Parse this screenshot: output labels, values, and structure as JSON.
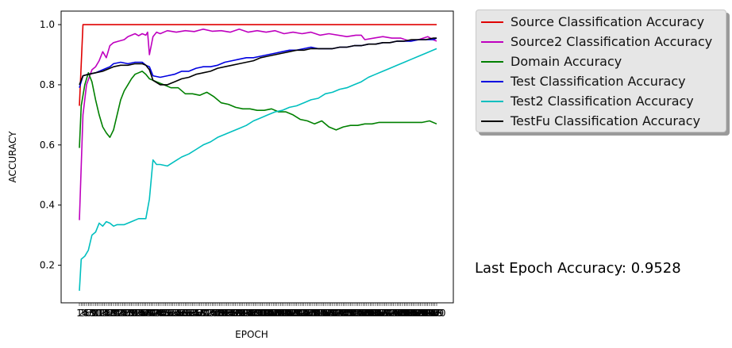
{
  "chart_data": {
    "type": "line",
    "xlabel": "EPOCH",
    "ylabel": "ACCURACY",
    "x_range": [
      1,
      200
    ],
    "ylim": [
      0.075,
      1.045
    ],
    "y_ticks": [
      "0.2",
      "0.4",
      "0.6",
      "0.8",
      "1.0"
    ],
    "y_tick_values": [
      0.2,
      0.4,
      0.6,
      0.8,
      1.0
    ],
    "grid": false,
    "legend_placement": "outside-right",
    "series": [
      {
        "name": "Source Classification Accuracy",
        "color": "#e00000",
        "points": [
          [
            1,
            0.73
          ],
          [
            3,
            1.0
          ],
          [
            10,
            1.0
          ],
          [
            30,
            1.0
          ],
          [
            60,
            1.0
          ],
          [
            100,
            1.0
          ],
          [
            140,
            1.0
          ],
          [
            170,
            1.0
          ],
          [
            200,
            1.0
          ]
        ]
      },
      {
        "name": "Source2 Classification Accuracy",
        "color": "#bf00bf",
        "points": [
          [
            1,
            0.35
          ],
          [
            3,
            0.7
          ],
          [
            5,
            0.8
          ],
          [
            8,
            0.85
          ],
          [
            10,
            0.86
          ],
          [
            12,
            0.88
          ],
          [
            14,
            0.91
          ],
          [
            16,
            0.89
          ],
          [
            18,
            0.93
          ],
          [
            20,
            0.94
          ],
          [
            23,
            0.945
          ],
          [
            26,
            0.95
          ],
          [
            28,
            0.96
          ],
          [
            30,
            0.965
          ],
          [
            32,
            0.97
          ],
          [
            34,
            0.963
          ],
          [
            36,
            0.97
          ],
          [
            38,
            0.965
          ],
          [
            39,
            0.975
          ],
          [
            40,
            0.9
          ],
          [
            42,
            0.96
          ],
          [
            44,
            0.975
          ],
          [
            46,
            0.97
          ],
          [
            50,
            0.98
          ],
          [
            55,
            0.975
          ],
          [
            60,
            0.98
          ],
          [
            65,
            0.977
          ],
          [
            70,
            0.985
          ],
          [
            75,
            0.978
          ],
          [
            80,
            0.98
          ],
          [
            85,
            0.975
          ],
          [
            90,
            0.985
          ],
          [
            95,
            0.975
          ],
          [
            100,
            0.98
          ],
          [
            105,
            0.975
          ],
          [
            110,
            0.98
          ],
          [
            115,
            0.97
          ],
          [
            120,
            0.975
          ],
          [
            125,
            0.97
          ],
          [
            130,
            0.975
          ],
          [
            135,
            0.965
          ],
          [
            140,
            0.97
          ],
          [
            150,
            0.96
          ],
          [
            155,
            0.965
          ],
          [
            158,
            0.965
          ],
          [
            160,
            0.95
          ],
          [
            165,
            0.955
          ],
          [
            170,
            0.96
          ],
          [
            175,
            0.955
          ],
          [
            180,
            0.955
          ],
          [
            185,
            0.945
          ],
          [
            190,
            0.95
          ],
          [
            195,
            0.96
          ],
          [
            198,
            0.95
          ],
          [
            200,
            0.945
          ]
        ]
      },
      {
        "name": "Domain Accuracy",
        "color": "#008000",
        "points": [
          [
            1,
            0.59
          ],
          [
            2,
            0.73
          ],
          [
            4,
            0.8
          ],
          [
            6,
            0.84
          ],
          [
            8,
            0.81
          ],
          [
            10,
            0.75
          ],
          [
            12,
            0.7
          ],
          [
            14,
            0.66
          ],
          [
            16,
            0.64
          ],
          [
            18,
            0.625
          ],
          [
            20,
            0.65
          ],
          [
            22,
            0.7
          ],
          [
            24,
            0.75
          ],
          [
            26,
            0.78
          ],
          [
            28,
            0.8
          ],
          [
            30,
            0.82
          ],
          [
            32,
            0.835
          ],
          [
            34,
            0.84
          ],
          [
            36,
            0.845
          ],
          [
            38,
            0.835
          ],
          [
            40,
            0.82
          ],
          [
            44,
            0.81
          ],
          [
            48,
            0.8
          ],
          [
            52,
            0.79
          ],
          [
            56,
            0.79
          ],
          [
            60,
            0.77
          ],
          [
            64,
            0.77
          ],
          [
            68,
            0.765
          ],
          [
            72,
            0.775
          ],
          [
            76,
            0.76
          ],
          [
            80,
            0.74
          ],
          [
            84,
            0.735
          ],
          [
            88,
            0.725
          ],
          [
            92,
            0.72
          ],
          [
            96,
            0.72
          ],
          [
            100,
            0.715
          ],
          [
            104,
            0.715
          ],
          [
            108,
            0.72
          ],
          [
            112,
            0.71
          ],
          [
            116,
            0.71
          ],
          [
            120,
            0.7
          ],
          [
            124,
            0.685
          ],
          [
            128,
            0.68
          ],
          [
            132,
            0.67
          ],
          [
            136,
            0.68
          ],
          [
            140,
            0.66
          ],
          [
            144,
            0.65
          ],
          [
            148,
            0.66
          ],
          [
            152,
            0.665
          ],
          [
            156,
            0.665
          ],
          [
            160,
            0.67
          ],
          [
            164,
            0.67
          ],
          [
            168,
            0.675
          ],
          [
            172,
            0.675
          ],
          [
            176,
            0.675
          ],
          [
            180,
            0.675
          ],
          [
            184,
            0.675
          ],
          [
            188,
            0.675
          ],
          [
            192,
            0.675
          ],
          [
            196,
            0.68
          ],
          [
            200,
            0.67
          ]
        ]
      },
      {
        "name": "Test Classification Accuracy",
        "color": "#0000e0",
        "points": [
          [
            1,
            0.79
          ],
          [
            3,
            0.83
          ],
          [
            6,
            0.835
          ],
          [
            10,
            0.84
          ],
          [
            14,
            0.85
          ],
          [
            18,
            0.86
          ],
          [
            20,
            0.87
          ],
          [
            24,
            0.875
          ],
          [
            28,
            0.87
          ],
          [
            32,
            0.875
          ],
          [
            36,
            0.875
          ],
          [
            38,
            0.865
          ],
          [
            40,
            0.86
          ],
          [
            42,
            0.83
          ],
          [
            46,
            0.825
          ],
          [
            50,
            0.83
          ],
          [
            54,
            0.835
          ],
          [
            58,
            0.845
          ],
          [
            62,
            0.845
          ],
          [
            66,
            0.855
          ],
          [
            70,
            0.86
          ],
          [
            74,
            0.86
          ],
          [
            78,
            0.865
          ],
          [
            82,
            0.875
          ],
          [
            86,
            0.88
          ],
          [
            90,
            0.885
          ],
          [
            94,
            0.89
          ],
          [
            98,
            0.89
          ],
          [
            102,
            0.895
          ],
          [
            106,
            0.9
          ],
          [
            110,
            0.905
          ],
          [
            114,
            0.91
          ],
          [
            118,
            0.915
          ],
          [
            122,
            0.915
          ],
          [
            126,
            0.92
          ],
          [
            130,
            0.925
          ],
          [
            134,
            0.92
          ],
          [
            138,
            0.92
          ],
          [
            142,
            0.92
          ],
          [
            146,
            0.925
          ],
          [
            150,
            0.925
          ],
          [
            154,
            0.93
          ],
          [
            158,
            0.93
          ],
          [
            162,
            0.935
          ],
          [
            166,
            0.935
          ],
          [
            170,
            0.94
          ],
          [
            174,
            0.94
          ],
          [
            178,
            0.945
          ],
          [
            182,
            0.945
          ],
          [
            186,
            0.945
          ],
          [
            190,
            0.95
          ],
          [
            194,
            0.95
          ],
          [
            198,
            0.95
          ],
          [
            200,
            0.955
          ]
        ]
      },
      {
        "name": "Test2 Classification Accuracy",
        "color": "#00bfbf",
        "points": [
          [
            1,
            0.115
          ],
          [
            2,
            0.22
          ],
          [
            4,
            0.23
          ],
          [
            6,
            0.25
          ],
          [
            8,
            0.3
          ],
          [
            10,
            0.31
          ],
          [
            12,
            0.34
          ],
          [
            14,
            0.33
          ],
          [
            16,
            0.345
          ],
          [
            18,
            0.34
          ],
          [
            20,
            0.33
          ],
          [
            22,
            0.335
          ],
          [
            26,
            0.335
          ],
          [
            30,
            0.345
          ],
          [
            34,
            0.355
          ],
          [
            38,
            0.355
          ],
          [
            40,
            0.42
          ],
          [
            42,
            0.55
          ],
          [
            44,
            0.535
          ],
          [
            46,
            0.535
          ],
          [
            50,
            0.53
          ],
          [
            54,
            0.545
          ],
          [
            58,
            0.56
          ],
          [
            62,
            0.57
          ],
          [
            66,
            0.585
          ],
          [
            70,
            0.6
          ],
          [
            74,
            0.61
          ],
          [
            78,
            0.625
          ],
          [
            82,
            0.635
          ],
          [
            86,
            0.645
          ],
          [
            90,
            0.655
          ],
          [
            94,
            0.665
          ],
          [
            98,
            0.68
          ],
          [
            102,
            0.69
          ],
          [
            106,
            0.7
          ],
          [
            110,
            0.71
          ],
          [
            114,
            0.715
          ],
          [
            118,
            0.725
          ],
          [
            122,
            0.73
          ],
          [
            126,
            0.74
          ],
          [
            130,
            0.75
          ],
          [
            134,
            0.755
          ],
          [
            138,
            0.77
          ],
          [
            142,
            0.775
          ],
          [
            146,
            0.785
          ],
          [
            150,
            0.79
          ],
          [
            154,
            0.8
          ],
          [
            158,
            0.81
          ],
          [
            162,
            0.825
          ],
          [
            166,
            0.835
          ],
          [
            170,
            0.845
          ],
          [
            174,
            0.855
          ],
          [
            178,
            0.865
          ],
          [
            182,
            0.875
          ],
          [
            186,
            0.885
          ],
          [
            190,
            0.895
          ],
          [
            194,
            0.905
          ],
          [
            198,
            0.915
          ],
          [
            200,
            0.92
          ]
        ]
      },
      {
        "name": "TestFu Classification Accuracy",
        "color": "#000000",
        "points": [
          [
            1,
            0.8
          ],
          [
            3,
            0.83
          ],
          [
            6,
            0.835
          ],
          [
            10,
            0.84
          ],
          [
            14,
            0.845
          ],
          [
            18,
            0.855
          ],
          [
            20,
            0.86
          ],
          [
            24,
            0.865
          ],
          [
            28,
            0.865
          ],
          [
            32,
            0.87
          ],
          [
            36,
            0.87
          ],
          [
            38,
            0.865
          ],
          [
            40,
            0.85
          ],
          [
            42,
            0.815
          ],
          [
            46,
            0.8
          ],
          [
            50,
            0.8
          ],
          [
            54,
            0.81
          ],
          [
            58,
            0.82
          ],
          [
            62,
            0.825
          ],
          [
            66,
            0.835
          ],
          [
            70,
            0.84
          ],
          [
            74,
            0.845
          ],
          [
            78,
            0.855
          ],
          [
            82,
            0.86
          ],
          [
            86,
            0.865
          ],
          [
            90,
            0.87
          ],
          [
            94,
            0.875
          ],
          [
            98,
            0.88
          ],
          [
            102,
            0.89
          ],
          [
            106,
            0.895
          ],
          [
            110,
            0.9
          ],
          [
            114,
            0.905
          ],
          [
            118,
            0.91
          ],
          [
            122,
            0.915
          ],
          [
            126,
            0.915
          ],
          [
            130,
            0.92
          ],
          [
            134,
            0.92
          ],
          [
            138,
            0.92
          ],
          [
            142,
            0.92
          ],
          [
            146,
            0.925
          ],
          [
            150,
            0.925
          ],
          [
            154,
            0.93
          ],
          [
            158,
            0.93
          ],
          [
            162,
            0.935
          ],
          [
            166,
            0.935
          ],
          [
            170,
            0.94
          ],
          [
            174,
            0.94
          ],
          [
            178,
            0.945
          ],
          [
            182,
            0.945
          ],
          [
            186,
            0.95
          ],
          [
            190,
            0.95
          ],
          [
            194,
            0.95
          ],
          [
            198,
            0.955
          ],
          [
            200,
            0.955
          ]
        ]
      }
    ]
  },
  "annotation": {
    "text": "Last Epoch Accuracy: 0.9528"
  }
}
